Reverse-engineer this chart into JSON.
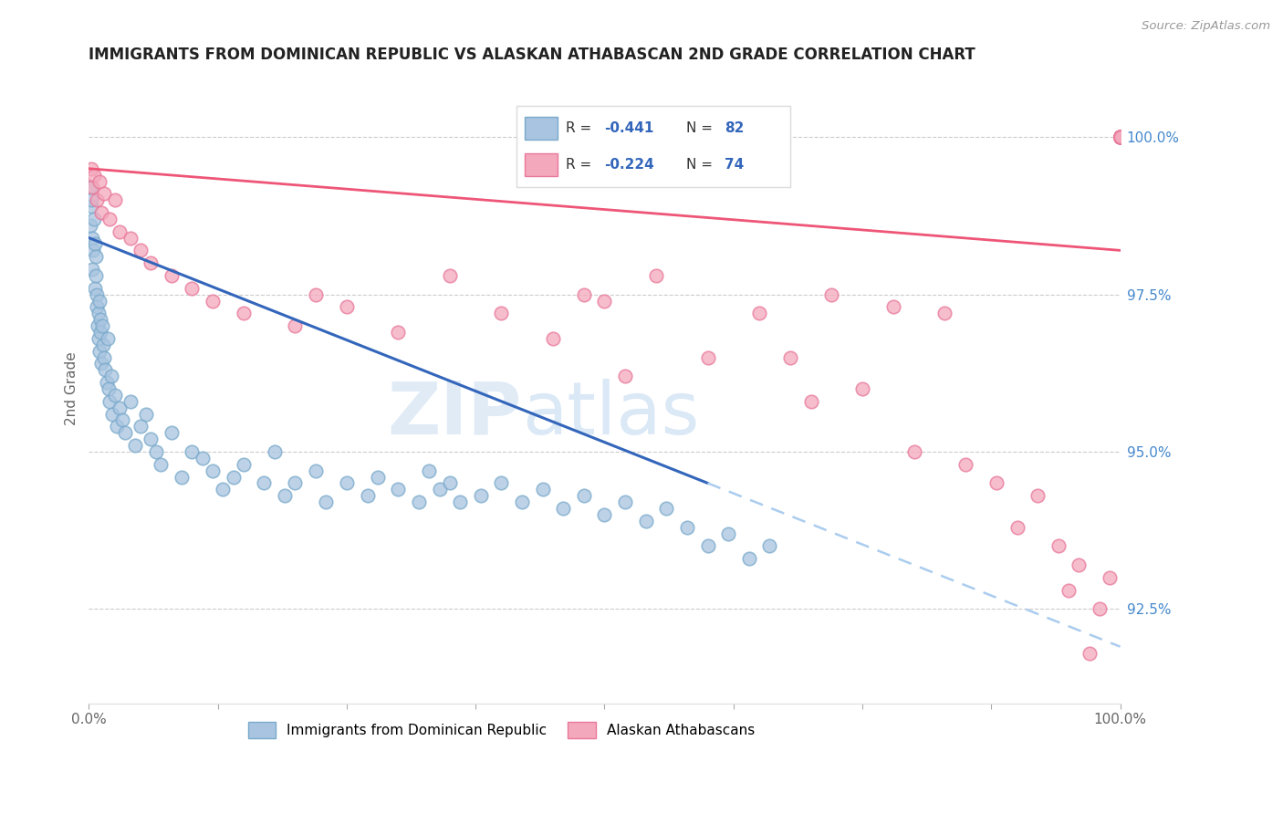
{
  "title": "IMMIGRANTS FROM DOMINICAN REPUBLIC VS ALASKAN ATHABASCAN 2ND GRADE CORRELATION CHART",
  "source": "Source: ZipAtlas.com",
  "ylabel": "2nd Grade",
  "right_yticks": [
    100.0,
    97.5,
    95.0,
    92.5
  ],
  "right_ytick_labels": [
    "100.0%",
    "97.5%",
    "95.0%",
    "92.5%"
  ],
  "legend_blue_r": "R = -0.441",
  "legend_blue_n": "N = 82",
  "legend_pink_r": "R = -0.224",
  "legend_pink_n": "N = 74",
  "blue_color": "#A8C4E0",
  "pink_color": "#F4A8BC",
  "blue_edge_color": "#7AAACB",
  "pink_edge_color": "#E8789A",
  "blue_line_color": "#3366BB",
  "pink_line_color": "#EE5577",
  "dashed_line_color": "#AACCEE",
  "watermark_zip": "ZIP",
  "watermark_atlas": "atlas",
  "xmin": 0.0,
  "xmax": 100.0,
  "ymin": 91.0,
  "ymax": 101.0,
  "blue_scatter_x": [
    0.15,
    0.18,
    0.22,
    0.25,
    0.3,
    0.35,
    0.4,
    0.5,
    0.55,
    0.6,
    0.65,
    0.7,
    0.75,
    0.8,
    0.85,
    0.9,
    0.95,
    1.0,
    1.05,
    1.1,
    1.15,
    1.2,
    1.3,
    1.4,
    1.5,
    1.6,
    1.7,
    1.8,
    1.9,
    2.0,
    2.2,
    2.3,
    2.5,
    2.7,
    3.0,
    3.2,
    3.5,
    4.0,
    4.5,
    5.0,
    5.5,
    6.0,
    6.5,
    7.0,
    8.0,
    9.0,
    10.0,
    11.0,
    12.0,
    13.0,
    14.0,
    15.0,
    17.0,
    18.0,
    19.0,
    20.0,
    22.0,
    23.0,
    25.0,
    27.0,
    28.0,
    30.0,
    32.0,
    33.0,
    34.0,
    35.0,
    36.0,
    38.0,
    40.0,
    42.0,
    44.0,
    46.0,
    48.0,
    50.0,
    52.0,
    54.0,
    56.0,
    58.0,
    60.0,
    62.0,
    64.0,
    66.0
  ],
  "blue_scatter_y": [
    99.2,
    98.6,
    98.9,
    99.0,
    98.4,
    97.9,
    98.2,
    98.7,
    97.6,
    98.3,
    97.8,
    98.1,
    97.5,
    97.3,
    97.0,
    97.2,
    96.8,
    97.4,
    96.6,
    97.1,
    96.9,
    96.4,
    97.0,
    96.7,
    96.5,
    96.3,
    96.1,
    96.8,
    96.0,
    95.8,
    96.2,
    95.6,
    95.9,
    95.4,
    95.7,
    95.5,
    95.3,
    95.8,
    95.1,
    95.4,
    95.6,
    95.2,
    95.0,
    94.8,
    95.3,
    94.6,
    95.0,
    94.9,
    94.7,
    94.4,
    94.6,
    94.8,
    94.5,
    95.0,
    94.3,
    94.5,
    94.7,
    94.2,
    94.5,
    94.3,
    94.6,
    94.4,
    94.2,
    94.7,
    94.4,
    94.5,
    94.2,
    94.3,
    94.5,
    94.2,
    94.4,
    94.1,
    94.3,
    94.0,
    94.2,
    93.9,
    94.1,
    93.8,
    93.5,
    93.7,
    93.3,
    93.5
  ],
  "pink_scatter_x": [
    0.2,
    0.3,
    0.5,
    0.8,
    1.0,
    1.2,
    1.5,
    2.0,
    2.5,
    3.0,
    4.0,
    5.0,
    6.0,
    8.0,
    10.0,
    12.0,
    15.0,
    20.0,
    22.0,
    25.0,
    30.0,
    35.0,
    40.0,
    45.0,
    48.0,
    50.0,
    52.0,
    55.0,
    60.0,
    65.0,
    68.0,
    70.0,
    72.0,
    75.0,
    78.0,
    80.0,
    83.0,
    85.0,
    88.0,
    90.0,
    92.0,
    94.0,
    95.0,
    96.0,
    97.0,
    98.0,
    99.0,
    100.0,
    100.0,
    100.0,
    100.0,
    100.0,
    100.0,
    100.0,
    100.0,
    100.0,
    100.0,
    100.0,
    100.0,
    100.0,
    100.0,
    100.0,
    100.0,
    100.0,
    100.0,
    100.0,
    100.0,
    100.0,
    100.0,
    100.0,
    100.0,
    100.0,
    100.0,
    100.0
  ],
  "pink_scatter_y": [
    99.5,
    99.2,
    99.4,
    99.0,
    99.3,
    98.8,
    99.1,
    98.7,
    99.0,
    98.5,
    98.4,
    98.2,
    98.0,
    97.8,
    97.6,
    97.4,
    97.2,
    97.0,
    97.5,
    97.3,
    96.9,
    97.8,
    97.2,
    96.8,
    97.5,
    97.4,
    96.2,
    97.8,
    96.5,
    97.2,
    96.5,
    95.8,
    97.5,
    96.0,
    97.3,
    95.0,
    97.2,
    94.8,
    94.5,
    93.8,
    94.3,
    93.5,
    92.8,
    93.2,
    91.8,
    92.5,
    93.0,
    100.0,
    100.0,
    100.0,
    100.0,
    100.0,
    100.0,
    100.0,
    100.0,
    100.0,
    100.0,
    100.0,
    100.0,
    100.0,
    100.0,
    100.0,
    100.0,
    100.0,
    100.0,
    100.0,
    100.0,
    100.0,
    100.0,
    100.0,
    100.0,
    100.0,
    100.0,
    100.0
  ],
  "blue_line_x0": 0.0,
  "blue_line_y0": 98.4,
  "blue_line_x1": 60.0,
  "blue_line_y1": 94.5,
  "blue_dash_x0": 60.0,
  "blue_dash_y0": 94.5,
  "blue_dash_x1": 100.0,
  "blue_dash_y1": 91.9,
  "pink_line_x0": 0.0,
  "pink_line_y0": 99.5,
  "pink_line_x1": 100.0,
  "pink_line_y1": 98.2
}
